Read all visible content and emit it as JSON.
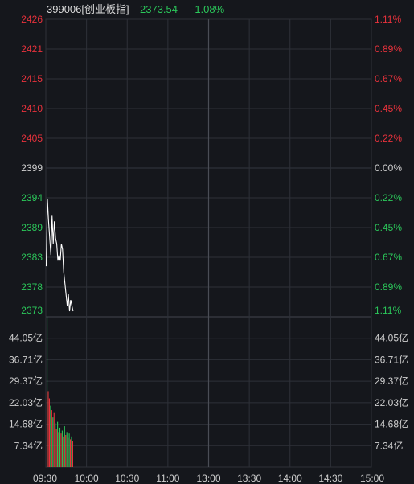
{
  "header": {
    "code_name": "399006[创业板指]",
    "price": "2373.54",
    "change_pct": "-1.08%"
  },
  "colors": {
    "background": "#15171c",
    "grid": "#2e3138",
    "up": "#e8323c",
    "down": "#2bc75a",
    "neutral": "#cfcfcf",
    "price_line": "#ffffff"
  },
  "price_axis": {
    "left_labels": [
      "2426",
      "2421",
      "2415",
      "2410",
      "2405",
      "2399",
      "2394",
      "2389",
      "2383",
      "2378",
      "2373"
    ],
    "right_labels": [
      "1.11%",
      "0.89%",
      "0.67%",
      "0.45%",
      "0.22%",
      "0.00%",
      "0.22%",
      "0.45%",
      "0.67%",
      "0.89%",
      "1.11%"
    ]
  },
  "volume_axis": {
    "labels": [
      "44.05亿",
      "36.71亿",
      "29.37亿",
      "22.03亿",
      "14.68亿",
      "7.34亿"
    ]
  },
  "time_axis": {
    "labels": [
      "09:30",
      "10:00",
      "10:30",
      "11:00",
      "13:00",
      "13:30",
      "14:00",
      "14:30",
      "15:00"
    ]
  },
  "chart_data": {
    "type": "line",
    "price_range": [
      2373,
      2426
    ],
    "prev_close": 2399,
    "price_series": [
      2382,
      2394,
      2390,
      2387,
      2384,
      2391,
      2386,
      2390,
      2387,
      2386,
      2383,
      2384,
      2383,
      2386,
      2385,
      2381,
      2379,
      2377,
      2375,
      2377,
      2374,
      2376,
      2375,
      2374
    ],
    "volume_max": 51.4,
    "volume_series": [
      {
        "v": 51.4,
        "up": false
      },
      {
        "v": 26.0,
        "up": true
      },
      {
        "v": 23.5,
        "up": true
      },
      {
        "v": 21.0,
        "up": false
      },
      {
        "v": 19.5,
        "up": true
      },
      {
        "v": 17.0,
        "up": false
      },
      {
        "v": 18.5,
        "up": true
      },
      {
        "v": 15.0,
        "up": false
      },
      {
        "v": 13.0,
        "up": true
      },
      {
        "v": 15.5,
        "up": false
      },
      {
        "v": 12.0,
        "up": true
      },
      {
        "v": 13.5,
        "up": false
      },
      {
        "v": 11.5,
        "up": true
      },
      {
        "v": 12.5,
        "up": false
      },
      {
        "v": 10.5,
        "up": true
      },
      {
        "v": 14.0,
        "up": false
      },
      {
        "v": 11.0,
        "up": true
      },
      {
        "v": 12.0,
        "up": false
      },
      {
        "v": 10.0,
        "up": true
      },
      {
        "v": 11.5,
        "up": false
      },
      {
        "v": 9.5,
        "up": true
      },
      {
        "v": 10.5,
        "up": false
      },
      {
        "v": 9.0,
        "up": true
      }
    ]
  }
}
